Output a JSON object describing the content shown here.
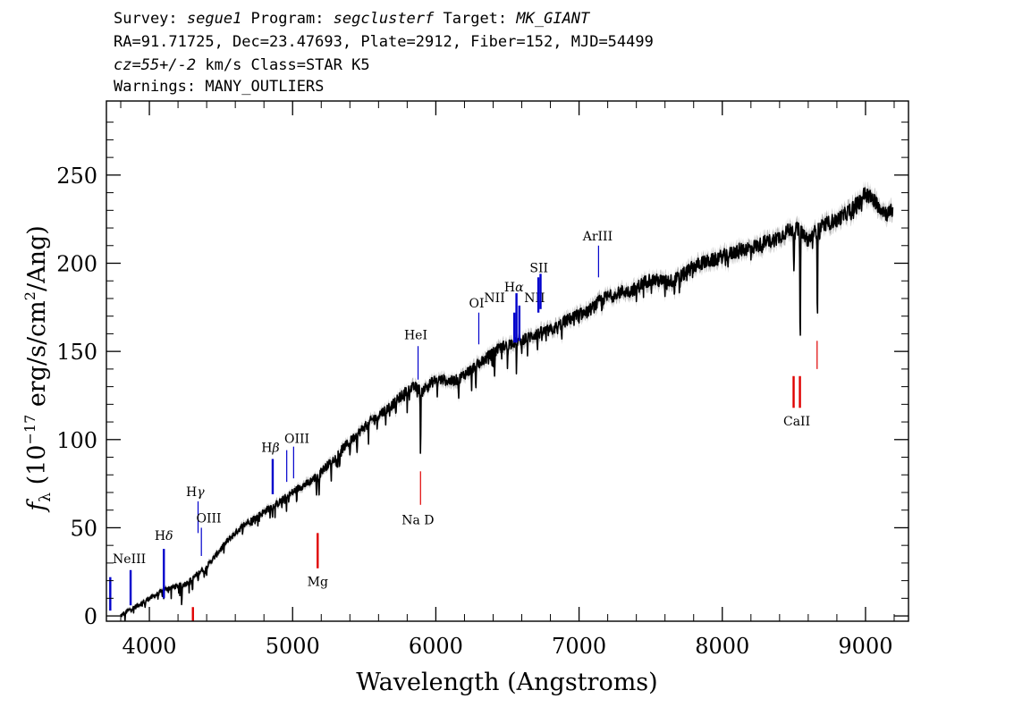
{
  "header": {
    "line1": {
      "survey_label": "Survey: ",
      "survey": "segue1",
      "program_label": " Program: ",
      "program": "segclusterf",
      "target_label": " Target: ",
      "target": "MK_GIANT"
    },
    "line2": "RA=91.71725, Dec=23.47693, Plate=2912, Fiber=152, MJD=54499",
    "line3": {
      "cz": "cz=55+/-2",
      "rest": " km/s Class=STAR K5"
    },
    "line4": "Warnings: MANY_OUTLIERS"
  },
  "chart_data": {
    "type": "line",
    "xlabel": "Wavelength (Angstroms)",
    "ylabel": {
      "f": "f",
      "sub": "λ",
      "open": " (10",
      "exp": "−17",
      "mid": " erg/s/cm",
      "exp2": "2",
      "close": "/Ang)"
    },
    "xlim": [
      3700,
      9300
    ],
    "ylim": [
      -3,
      292
    ],
    "xticks": [
      {
        "v": 4000,
        "label": "4000"
      },
      {
        "v": 5000,
        "label": "5000"
      },
      {
        "v": 6000,
        "label": "6000"
      },
      {
        "v": 7000,
        "label": "7000"
      },
      {
        "v": 8000,
        "label": "8000"
      },
      {
        "v": 9000,
        "label": "9000"
      }
    ],
    "yticks": [
      {
        "v": 0,
        "label": "0"
      },
      {
        "v": 50,
        "label": "50"
      },
      {
        "v": 100,
        "label": "100"
      },
      {
        "v": 150,
        "label": "150"
      },
      {
        "v": 200,
        "label": "200"
      },
      {
        "v": 250,
        "label": "250"
      }
    ],
    "spectrum": {
      "color": "#000000",
      "error_color": "#b4b4b4",
      "x": [
        3800,
        3850,
        3900,
        4000,
        4050,
        4100,
        4150,
        4200,
        4250,
        4300,
        4350,
        4400,
        4450,
        4500,
        4550,
        4600,
        4650,
        4700,
        4750,
        4800,
        4850,
        4900,
        4950,
        5000,
        5050,
        5100,
        5150,
        5200,
        5250,
        5300,
        5350,
        5400,
        5450,
        5500,
        5550,
        5600,
        5650,
        5700,
        5750,
        5800,
        5850,
        5900,
        5950,
        6000,
        6050,
        6100,
        6150,
        6200,
        6250,
        6300,
        6350,
        6400,
        6450,
        6500,
        6550,
        6600,
        6650,
        6700,
        6750,
        6800,
        6850,
        6900,
        6950,
        7000,
        7050,
        7100,
        7150,
        7200,
        7250,
        7300,
        7350,
        7400,
        7450,
        7500,
        7550,
        7600,
        7650,
        7700,
        7750,
        7800,
        7850,
        7900,
        7950,
        8000,
        8050,
        8100,
        8150,
        8200,
        8250,
        8300,
        8350,
        8400,
        8450,
        8500,
        8550,
        8600,
        8650,
        8700,
        8750,
        8800,
        8850,
        8900,
        8950,
        9000,
        9050,
        9100,
        9150,
        9190
      ],
      "y": [
        0,
        3,
        5,
        10,
        12,
        15,
        16,
        17,
        18,
        21,
        25,
        28,
        33,
        38,
        43,
        47,
        51,
        54,
        56,
        59,
        62,
        64,
        67,
        70,
        73,
        75,
        78,
        82,
        86,
        90,
        95,
        99,
        103,
        107,
        111,
        114,
        117,
        120,
        124,
        128,
        130,
        128,
        131,
        134,
        134,
        133,
        134,
        137,
        140,
        143,
        146,
        149,
        152,
        154,
        155,
        157,
        158,
        160,
        161,
        162,
        164,
        167,
        169,
        171,
        172,
        175,
        179,
        181,
        182,
        184,
        184,
        186,
        189,
        191,
        190,
        190,
        190,
        192,
        195,
        198,
        200,
        201,
        202,
        204,
        205,
        207,
        208,
        209,
        210,
        212,
        213,
        215,
        218,
        220,
        218,
        213,
        218,
        221,
        223,
        225,
        227,
        231,
        234,
        240,
        236,
        232,
        228,
        230
      ],
      "absorptions": [
        {
          "x": 3830,
          "depth": 4
        },
        {
          "x": 3970,
          "depth": 4
        },
        {
          "x": 4101,
          "depth": 5
        },
        {
          "x": 4227,
          "depth": 8
        },
        {
          "x": 4300,
          "depth": 6
        },
        {
          "x": 4340,
          "depth": 5
        },
        {
          "x": 4383,
          "depth": 6
        },
        {
          "x": 4860,
          "depth": 6
        },
        {
          "x": 4957,
          "depth": 5
        },
        {
          "x": 5167,
          "depth": 10
        },
        {
          "x": 5184,
          "depth": 14
        },
        {
          "x": 5270,
          "depth": 9
        },
        {
          "x": 5328,
          "depth": 8
        },
        {
          "x": 5400,
          "depth": 8
        },
        {
          "x": 5450,
          "depth": 9
        },
        {
          "x": 5530,
          "depth": 10
        },
        {
          "x": 5590,
          "depth": 8
        },
        {
          "x": 5650,
          "depth": 8
        },
        {
          "x": 5720,
          "depth": 9
        },
        {
          "x": 5800,
          "depth": 10
        },
        {
          "x": 5893,
          "depth": 38
        },
        {
          "x": 6010,
          "depth": 10
        },
        {
          "x": 6160,
          "depth": 12
        },
        {
          "x": 6250,
          "depth": 12
        },
        {
          "x": 6280,
          "depth": 14
        },
        {
          "x": 6410,
          "depth": 12
        },
        {
          "x": 6500,
          "depth": 12
        },
        {
          "x": 6563,
          "depth": 16
        },
        {
          "x": 6600,
          "depth": 10
        },
        {
          "x": 6640,
          "depth": 8
        },
        {
          "x": 6710,
          "depth": 9
        },
        {
          "x": 6880,
          "depth": 8
        },
        {
          "x": 7000,
          "depth": 7
        },
        {
          "x": 7160,
          "depth": 8
        },
        {
          "x": 7400,
          "depth": 7
        },
        {
          "x": 7600,
          "depth": 9
        },
        {
          "x": 7665,
          "depth": 8
        },
        {
          "x": 7700,
          "depth": 7
        },
        {
          "x": 8200,
          "depth": 5
        },
        {
          "x": 8500,
          "depth": 28
        },
        {
          "x": 8544,
          "depth": 65
        },
        {
          "x": 8664,
          "depth": 50
        },
        {
          "x": 8800,
          "depth": 4
        },
        {
          "x": 8900,
          "depth": 4
        }
      ]
    },
    "lines": [
      {
        "label": "",
        "x": 3727,
        "y0": 3,
        "y1": 22,
        "color": "#0000cc",
        "w": 2.4,
        "lx": 3745,
        "ly": 23
      },
      {
        "label": "NeIII",
        "x": 3869,
        "y0": 6,
        "y1": 26,
        "color": "#0000cc",
        "w": 2.4,
        "lx": 3860,
        "ly": 30
      },
      {
        "label": "",
        "x": 4101,
        "y0": 10,
        "y1": 38,
        "color": "#0000cc",
        "w": 2.4,
        "lx": 4101,
        "ly": 43,
        "greek": "Hδ"
      },
      {
        "label": "",
        "x": 4340,
        "y0": 47,
        "y1": 65,
        "color": "#0000cc",
        "w": 1.2,
        "lx": 4320,
        "ly": 68,
        "greek": "Hγ"
      },
      {
        "label": "OIII",
        "x": 4363,
        "y0": 34,
        "y1": 50,
        "color": "#0000cc",
        "w": 1.2,
        "lx": 4415,
        "ly": 53
      },
      {
        "label": "",
        "x": 4861,
        "y0": 69,
        "y1": 89,
        "color": "#0000cc",
        "w": 2.4,
        "lx": 4845,
        "ly": 93,
        "greek": "Hβ"
      },
      {
        "label": "OIII",
        "x": 4959,
        "y0": 76,
        "y1": 94,
        "color": "#0000cc",
        "w": 1.2,
        "lx": 5030,
        "ly": 98
      },
      {
        "label": "",
        "x": 5007,
        "y0": 78,
        "y1": 96,
        "color": "#0000cc",
        "w": 1.2
      },
      {
        "label": "HeI",
        "x": 5876,
        "y0": 134,
        "y1": 153,
        "color": "#0000cc",
        "w": 1.2,
        "lx": 5860,
        "ly": 157
      },
      {
        "label": "OI",
        "x": 6300,
        "y0": 154,
        "y1": 172,
        "color": "#0000cc",
        "w": 1.2,
        "lx": 6285,
        "ly": 175
      },
      {
        "label": "NII",
        "x": 6548,
        "y0": 155,
        "y1": 172,
        "color": "#0000cc",
        "w": 2.4,
        "lx": 6410,
        "ly": 178
      },
      {
        "label": "",
        "x": 6563,
        "y0": 155,
        "y1": 183,
        "color": "#0000cc",
        "w": 2.4,
        "lx": 6545,
        "ly": 184,
        "greek": "Hα"
      },
      {
        "label": "NII",
        "x": 6583,
        "y0": 156,
        "y1": 176,
        "color": "#0000cc",
        "w": 2.4,
        "lx": 6690,
        "ly": 178
      },
      {
        "label": "SII",
        "x": 6716,
        "y0": 172,
        "y1": 192,
        "color": "#0000cc",
        "w": 2.4,
        "lx": 6720,
        "ly": 195
      },
      {
        "label": "",
        "x": 6731,
        "y0": 174,
        "y1": 194,
        "color": "#0000cc",
        "w": 2.4
      },
      {
        "label": "ArIII",
        "x": 7136,
        "y0": 192,
        "y1": 210,
        "color": "#0000cc",
        "w": 1.2,
        "lx": 7130,
        "ly": 213
      },
      {
        "label": "",
        "x": 4304,
        "y0": -3,
        "y1": 5,
        "color": "#e00000",
        "w": 2.4
      },
      {
        "label": "Mg",
        "x": 5175,
        "y0": 27,
        "y1": 47,
        "color": "#e00000",
        "w": 2.4,
        "lx": 5175,
        "ly": 17
      },
      {
        "label": "Na D",
        "x": 5893,
        "y0": 63,
        "y1": 82,
        "color": "#e00000",
        "w": 1.2,
        "lx": 5875,
        "ly": 52
      },
      {
        "label": "CaII",
        "x": 8498,
        "y0": 118,
        "y1": 136,
        "color": "#e00000",
        "w": 2.4,
        "lx": 8520,
        "ly": 108
      },
      {
        "label": "",
        "x": 8542,
        "y0": 118,
        "y1": 136,
        "color": "#e00000",
        "w": 2.4
      },
      {
        "label": "",
        "x": 8662,
        "y0": 140,
        "y1": 156,
        "color": "#e00000",
        "w": 1.2
      }
    ]
  }
}
